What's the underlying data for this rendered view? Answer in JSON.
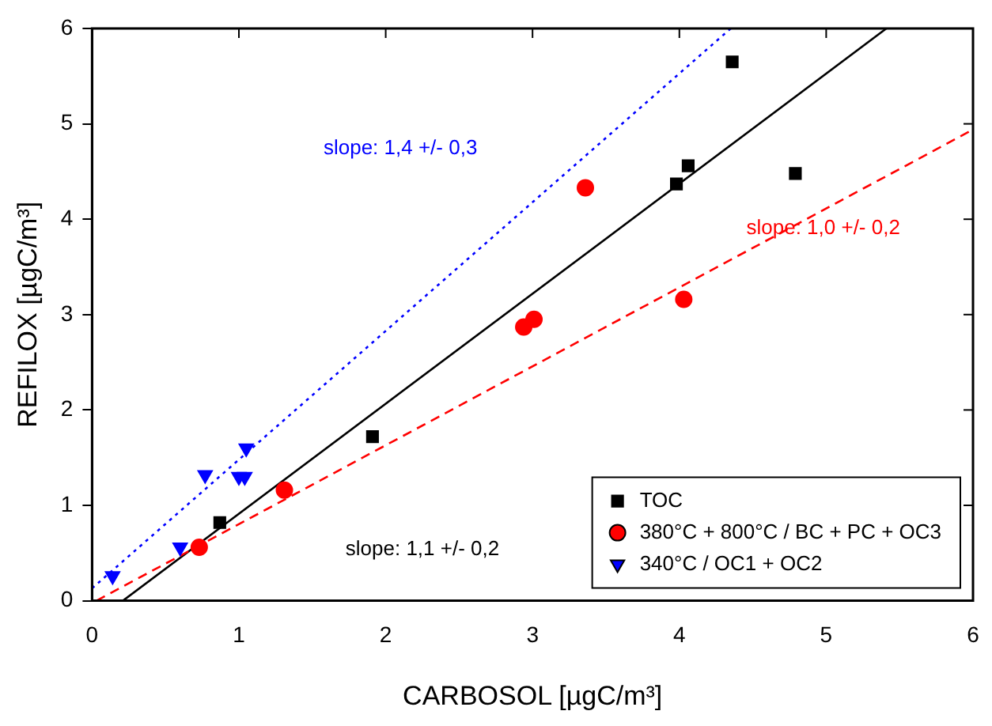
{
  "chart_data": {
    "type": "scatter",
    "xlabel": "CARBOSOL [µgC/m³]",
    "ylabel": "REFILOX [µgC/m³]",
    "xlim": [
      0,
      6
    ],
    "ylim": [
      0,
      6
    ],
    "xticks": [
      0,
      1,
      2,
      3,
      4,
      5,
      6
    ],
    "yticks": [
      0,
      1,
      2,
      3,
      4,
      5,
      6
    ],
    "grid": false,
    "legend": "bottom right",
    "series": [
      {
        "name": "TOC",
        "color": "#000000",
        "marker": "square",
        "x": [
          0.87,
          1.91,
          3.98,
          4.06,
          4.36,
          4.79
        ],
        "values": [
          0.82,
          1.72,
          4.37,
          4.56,
          5.65,
          4.48
        ]
      },
      {
        "name": "380°C + 800°C / BC + PC + OC3",
        "color": "#ff0000",
        "marker": "circle",
        "x": [
          0.73,
          1.31,
          2.94,
          3.01,
          3.36,
          4.03
        ],
        "values": [
          0.56,
          1.16,
          2.87,
          2.95,
          4.33,
          3.16
        ]
      },
      {
        "name": "340°C / OC1 + OC2",
        "color": "#0000ff",
        "marker": "triangle",
        "x": [
          0.14,
          0.6,
          0.77,
          1.0,
          1.04,
          1.05
        ],
        "values": [
          0.26,
          0.56,
          1.32,
          1.3,
          1.3,
          1.6
        ]
      },
      {
        "type": "line",
        "color": "#0000ff",
        "marker": "none",
        "line_style": "dotted",
        "x": [
          0,
          4.35
        ],
        "values": [
          0.13,
          6
        ]
      },
      {
        "type": "line",
        "color": "#ff0000",
        "marker": "none",
        "line_style": "dashed",
        "x": [
          0.03,
          6
        ],
        "values": [
          0,
          4.94
        ]
      },
      {
        "type": "line",
        "color": "#000000",
        "marker": "none",
        "line_style": "solid",
        "x": [
          0.21,
          5.41
        ],
        "values": [
          0,
          6
        ]
      }
    ],
    "annotations": [
      "slope: 1,4 +/- 0,3",
      "slope: 1,0 +/- 0,2",
      "slope: 1,1 +/- 0,2"
    ]
  }
}
